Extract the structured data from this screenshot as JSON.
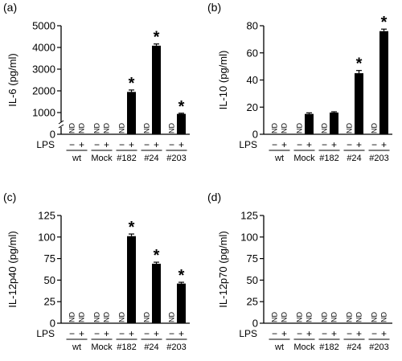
{
  "chart_data": [
    {
      "type": "bar",
      "panel_label": "(a)",
      "ylabel": "IL-6 (pg/ml)",
      "ylim": [
        0,
        5000
      ],
      "yticks": [
        "0",
        "1000",
        "2000",
        "3000",
        "4000",
        "5000"
      ],
      "y_break": true,
      "groups": [
        "wt",
        "Mock",
        "#182",
        "#24",
        "#203"
      ],
      "lps_label": "LPS",
      "lps_signs": [
        "−",
        "+"
      ],
      "values": [
        [
          null,
          null
        ],
        [
          null,
          null
        ],
        [
          null,
          1950
        ],
        [
          null,
          4080
        ],
        [
          null,
          940
        ]
      ],
      "errors": [
        [
          0,
          0
        ],
        [
          0,
          0
        ],
        [
          0,
          90
        ],
        [
          0,
          80
        ],
        [
          0,
          30
        ]
      ],
      "nd_text": "ND",
      "significant": [
        [
          false,
          false
        ],
        [
          false,
          false
        ],
        [
          false,
          true
        ],
        [
          false,
          true
        ],
        [
          false,
          true
        ]
      ],
      "star_symbol": "*"
    },
    {
      "type": "bar",
      "panel_label": "(b)",
      "ylabel": "IL-10 (pg/ml)",
      "ylim": [
        0,
        80
      ],
      "yticks": [
        "0",
        "20",
        "40",
        "60",
        "80"
      ],
      "y_break": false,
      "groups": [
        "wt",
        "Mock",
        "#182",
        "#24",
        "#203"
      ],
      "lps_label": "LPS",
      "lps_signs": [
        "−",
        "+"
      ],
      "values": [
        [
          null,
          null
        ],
        [
          null,
          15
        ],
        [
          null,
          16
        ],
        [
          null,
          45
        ],
        [
          null,
          76
        ]
      ],
      "errors": [
        [
          0,
          0
        ],
        [
          0,
          0.8
        ],
        [
          0,
          0.6
        ],
        [
          0,
          2
        ],
        [
          0,
          1.5
        ]
      ],
      "nd_text": "ND",
      "significant": [
        [
          false,
          false
        ],
        [
          false,
          false
        ],
        [
          false,
          false
        ],
        [
          false,
          true
        ],
        [
          false,
          true
        ]
      ],
      "star_symbol": "*"
    },
    {
      "type": "bar",
      "panel_label": "(c)",
      "ylabel": "IL-12p40 (pg/ml)",
      "ylim": [
        0,
        125
      ],
      "yticks": [
        "0",
        "25",
        "50",
        "75",
        "100",
        "125"
      ],
      "y_break": false,
      "groups": [
        "wt",
        "Mock",
        "#182",
        "#24",
        "#203"
      ],
      "lps_label": "LPS",
      "lps_signs": [
        "−",
        "+"
      ],
      "values": [
        [
          null,
          null
        ],
        [
          null,
          null
        ],
        [
          null,
          101
        ],
        [
          null,
          69
        ],
        [
          null,
          46
        ]
      ],
      "errors": [
        [
          0,
          0
        ],
        [
          0,
          0
        ],
        [
          0,
          2.5
        ],
        [
          0,
          1.8
        ],
        [
          0,
          1.5
        ]
      ],
      "nd_text": "ND",
      "significant": [
        [
          false,
          false
        ],
        [
          false,
          false
        ],
        [
          false,
          true
        ],
        [
          false,
          true
        ],
        [
          false,
          true
        ]
      ],
      "star_symbol": "*"
    },
    {
      "type": "bar",
      "panel_label": "(d)",
      "ylabel": "IL-12p70 (pg/ml)",
      "ylim": [
        0,
        125
      ],
      "yticks": [
        "0",
        "25",
        "50",
        "75",
        "100",
        "125"
      ],
      "y_break": false,
      "groups": [
        "wt",
        "Mock",
        "#182",
        "#24",
        "#203"
      ],
      "lps_label": "LPS",
      "lps_signs": [
        "−",
        "+"
      ],
      "values": [
        [
          null,
          null
        ],
        [
          null,
          null
        ],
        [
          null,
          null
        ],
        [
          null,
          null
        ],
        [
          null,
          null
        ]
      ],
      "errors": [
        [
          0,
          0
        ],
        [
          0,
          0
        ],
        [
          0,
          0
        ],
        [
          0,
          0
        ],
        [
          0,
          0
        ]
      ],
      "nd_text": "ND",
      "significant": [
        [
          false,
          false
        ],
        [
          false,
          false
        ],
        [
          false,
          false
        ],
        [
          false,
          false
        ],
        [
          false,
          false
        ]
      ],
      "star_symbol": "*"
    }
  ]
}
